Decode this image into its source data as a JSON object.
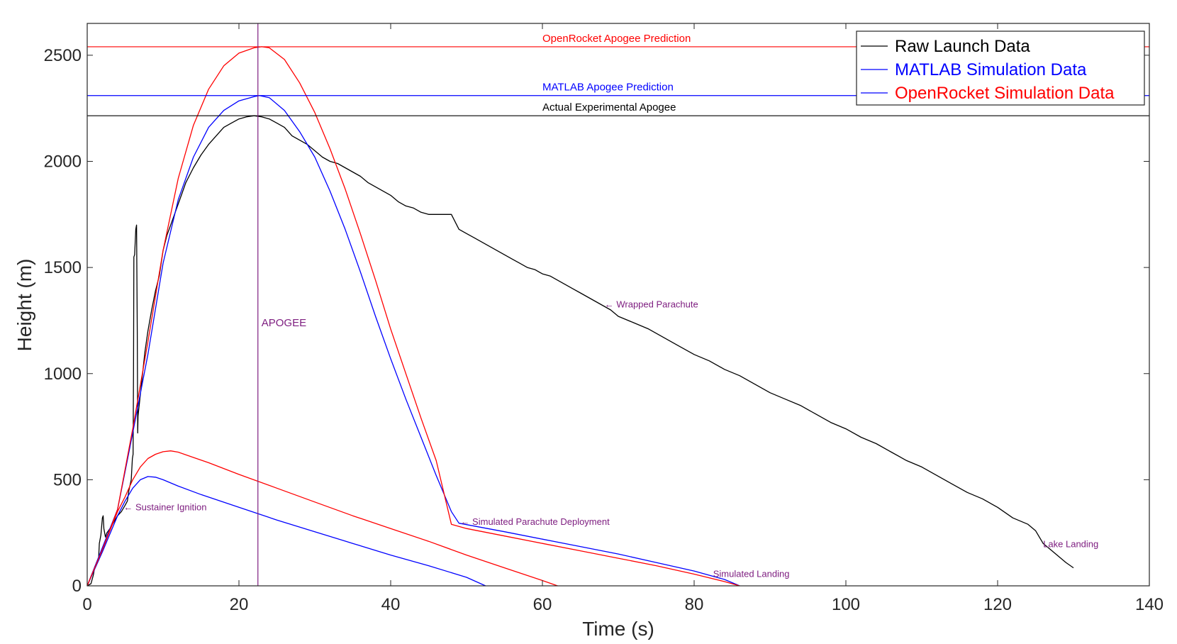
{
  "colors": {
    "raw": "#000000",
    "matlab": "#0000ff",
    "openrocket": "#ff0000",
    "annotation": "#7e1e80",
    "axis": "#262626"
  },
  "chart_data": {
    "type": "line",
    "xlabel": "Time (s)",
    "ylabel": "Height (m)",
    "xlim": [
      0,
      140
    ],
    "ylim": [
      0,
      2650
    ],
    "xticks": [
      0,
      20,
      40,
      60,
      80,
      100,
      120,
      140
    ],
    "yticks": [
      0,
      500,
      1000,
      1500,
      2000,
      2500
    ],
    "xtick_labels": [
      "0",
      "20",
      "40",
      "60",
      "80",
      "100",
      "120",
      "140"
    ],
    "ytick_labels": [
      "0",
      "500",
      "1000",
      "1500",
      "2000",
      "2500"
    ],
    "grid": false,
    "legend_position": "top-right",
    "legend": [
      {
        "label": "Raw Launch Data",
        "color": "#000000",
        "text_color": "#000000",
        "line_color": "#000000"
      },
      {
        "label": "MATLAB Simulation Data",
        "color": "#0000ff",
        "text_color": "#0000ff",
        "line_color": "#0000ff"
      },
      {
        "label": "OpenRocket Simulation Data",
        "color": "#ff0000",
        "text_color": "#ff0000",
        "line_color": "#0000ff"
      }
    ],
    "series": [
      {
        "color": "#000000",
        "points": [
          [
            0,
            0
          ],
          [
            0.5,
            10
          ],
          [
            0.8,
            50
          ],
          [
            1.0,
            90
          ],
          [
            1.3,
            110
          ],
          [
            1.5,
            130
          ],
          [
            1.6,
            200
          ],
          [
            1.8,
            240
          ],
          [
            2.0,
            320
          ],
          [
            2.1,
            330
          ],
          [
            2.2,
            270
          ],
          [
            2.4,
            230
          ],
          [
            2.6,
            250
          ],
          [
            3.0,
            270
          ],
          [
            3.5,
            300
          ],
          [
            4.0,
            330
          ],
          [
            4.5,
            350
          ],
          [
            5.0,
            380
          ],
          [
            5.3,
            400
          ],
          [
            5.5,
            450
          ],
          [
            5.8,
            500
          ],
          [
            5.95,
            600
          ],
          [
            6.05,
            620
          ],
          [
            6.1,
            1000
          ],
          [
            6.15,
            1550
          ],
          [
            6.25,
            1560
          ],
          [
            6.4,
            1680
          ],
          [
            6.5,
            1700
          ],
          [
            6.6,
            1200
          ],
          [
            6.65,
            720
          ],
          [
            6.7,
            800
          ],
          [
            7.0,
            900
          ],
          [
            7.3,
            1000
          ],
          [
            7.6,
            1100
          ],
          [
            8.0,
            1200
          ],
          [
            8.5,
            1300
          ],
          [
            9.0,
            1390
          ],
          [
            9.5,
            1460
          ],
          [
            10.0,
            1580
          ],
          [
            10.5,
            1650
          ],
          [
            11.0,
            1700
          ],
          [
            11.5,
            1750
          ],
          [
            12.0,
            1800
          ],
          [
            12.5,
            1850
          ],
          [
            13.0,
            1900
          ],
          [
            14.0,
            1970
          ],
          [
            15.0,
            2030
          ],
          [
            16.0,
            2080
          ],
          [
            17.0,
            2120
          ],
          [
            18.0,
            2160
          ],
          [
            19.0,
            2180
          ],
          [
            20.0,
            2200
          ],
          [
            21.0,
            2210
          ],
          [
            22.0,
            2215
          ],
          [
            23.0,
            2210
          ],
          [
            24.0,
            2200
          ],
          [
            25.0,
            2180
          ],
          [
            26.0,
            2160
          ],
          [
            27.0,
            2120
          ],
          [
            28.0,
            2100
          ],
          [
            29.0,
            2080
          ],
          [
            30.0,
            2050
          ],
          [
            31.0,
            2020
          ],
          [
            32.0,
            2000
          ],
          [
            33.0,
            1990
          ],
          [
            34.0,
            1970
          ],
          [
            35.0,
            1950
          ],
          [
            36.0,
            1930
          ],
          [
            37.0,
            1900
          ],
          [
            38.0,
            1880
          ],
          [
            39.0,
            1860
          ],
          [
            40.0,
            1840
          ],
          [
            41.0,
            1810
          ],
          [
            42.0,
            1790
          ],
          [
            43.0,
            1780
          ],
          [
            44.0,
            1760
          ],
          [
            45.0,
            1750
          ],
          [
            46.0,
            1750
          ],
          [
            47.0,
            1750
          ],
          [
            48.0,
            1750
          ],
          [
            49.0,
            1680
          ],
          [
            50.0,
            1660
          ],
          [
            51.0,
            1640
          ],
          [
            52.0,
            1620
          ],
          [
            53.0,
            1600
          ],
          [
            54.0,
            1580
          ],
          [
            55.0,
            1560
          ],
          [
            56.0,
            1540
          ],
          [
            57.0,
            1520
          ],
          [
            58.0,
            1500
          ],
          [
            59.0,
            1490
          ],
          [
            60.0,
            1470
          ],
          [
            61.0,
            1460
          ],
          [
            62.0,
            1440
          ],
          [
            63.0,
            1420
          ],
          [
            64.0,
            1400
          ],
          [
            65.0,
            1380
          ],
          [
            66.0,
            1360
          ],
          [
            67.0,
            1340
          ],
          [
            68.0,
            1320
          ],
          [
            69.0,
            1300
          ],
          [
            70.0,
            1270
          ],
          [
            72.0,
            1240
          ],
          [
            74.0,
            1210
          ],
          [
            76.0,
            1170
          ],
          [
            78.0,
            1130
          ],
          [
            80.0,
            1090
          ],
          [
            82.0,
            1060
          ],
          [
            84.0,
            1020
          ],
          [
            86.0,
            990
          ],
          [
            88.0,
            950
          ],
          [
            90.0,
            910
          ],
          [
            92.0,
            880
          ],
          [
            94.0,
            850
          ],
          [
            96.0,
            810
          ],
          [
            98.0,
            770
          ],
          [
            100.0,
            740
          ],
          [
            102.0,
            700
          ],
          [
            104.0,
            670
          ],
          [
            106.0,
            630
          ],
          [
            108.0,
            590
          ],
          [
            110.0,
            560
          ],
          [
            112.0,
            520
          ],
          [
            114.0,
            480
          ],
          [
            116.0,
            440
          ],
          [
            118.0,
            410
          ],
          [
            120.0,
            370
          ],
          [
            122.0,
            320
          ],
          [
            124.0,
            290
          ],
          [
            125.0,
            260
          ],
          [
            126.0,
            200
          ],
          [
            127.0,
            170
          ],
          [
            128.0,
            140
          ],
          [
            129.0,
            110
          ],
          [
            130.0,
            85
          ]
        ]
      },
      {
        "color": "#0000ff",
        "points": [
          [
            0,
            0
          ],
          [
            2,
            180
          ],
          [
            4,
            360
          ],
          [
            6,
            720
          ],
          [
            8,
            1090
          ],
          [
            10,
            1520
          ],
          [
            12,
            1820
          ],
          [
            14,
            2020
          ],
          [
            16,
            2160
          ],
          [
            18,
            2240
          ],
          [
            20,
            2285
          ],
          [
            22,
            2305
          ],
          [
            22.7,
            2310
          ],
          [
            24,
            2300
          ],
          [
            26,
            2240
          ],
          [
            28,
            2140
          ],
          [
            30,
            2020
          ],
          [
            32,
            1860
          ],
          [
            34,
            1680
          ],
          [
            36,
            1480
          ],
          [
            38,
            1270
          ],
          [
            40,
            1070
          ],
          [
            42,
            880
          ],
          [
            44,
            700
          ],
          [
            46,
            520
          ],
          [
            48,
            350
          ],
          [
            49,
            295
          ],
          [
            55,
            255
          ],
          [
            60,
            220
          ],
          [
            65,
            185
          ],
          [
            70,
            150
          ],
          [
            75,
            110
          ],
          [
            80,
            70
          ],
          [
            84,
            30
          ],
          [
            86,
            0
          ]
        ]
      },
      {
        "color": "#ff0000",
        "points": [
          [
            0,
            0
          ],
          [
            2,
            170
          ],
          [
            4,
            360
          ],
          [
            6,
            740
          ],
          [
            8,
            1150
          ],
          [
            10,
            1580
          ],
          [
            12,
            1920
          ],
          [
            14,
            2170
          ],
          [
            16,
            2340
          ],
          [
            18,
            2450
          ],
          [
            20,
            2510
          ],
          [
            22,
            2535
          ],
          [
            23,
            2540
          ],
          [
            24,
            2535
          ],
          [
            26,
            2480
          ],
          [
            28,
            2370
          ],
          [
            30,
            2230
          ],
          [
            32,
            2060
          ],
          [
            34,
            1870
          ],
          [
            36,
            1660
          ],
          [
            38,
            1440
          ],
          [
            40,
            1210
          ],
          [
            42,
            1000
          ],
          [
            44,
            790
          ],
          [
            46,
            590
          ],
          [
            47,
            440
          ],
          [
            48,
            290
          ],
          [
            50,
            270
          ],
          [
            55,
            235
          ],
          [
            60,
            200
          ],
          [
            65,
            165
          ],
          [
            70,
            130
          ],
          [
            75,
            95
          ],
          [
            80,
            55
          ],
          [
            84,
            20
          ],
          [
            86,
            0
          ]
        ]
      },
      {
        "color": "#0000ff",
        "points": [
          [
            0,
            0
          ],
          [
            2,
            160
          ],
          [
            4,
            330
          ],
          [
            5,
            400
          ],
          [
            6,
            460
          ],
          [
            7,
            500
          ],
          [
            8,
            515
          ],
          [
            9,
            512
          ],
          [
            10,
            500
          ],
          [
            12,
            470
          ],
          [
            15,
            430
          ],
          [
            20,
            370
          ],
          [
            25,
            310
          ],
          [
            30,
            255
          ],
          [
            35,
            200
          ],
          [
            40,
            145
          ],
          [
            45,
            95
          ],
          [
            50,
            40
          ],
          [
            52.5,
            0
          ]
        ]
      },
      {
        "color": "#ff0000",
        "points": [
          [
            0,
            0
          ],
          [
            2,
            170
          ],
          [
            4,
            350
          ],
          [
            5,
            420
          ],
          [
            6,
            500
          ],
          [
            7,
            560
          ],
          [
            8,
            600
          ],
          [
            9,
            620
          ],
          [
            10,
            632
          ],
          [
            11,
            636
          ],
          [
            12,
            630
          ],
          [
            14,
            605
          ],
          [
            16,
            580
          ],
          [
            20,
            525
          ],
          [
            25,
            460
          ],
          [
            30,
            395
          ],
          [
            35,
            330
          ],
          [
            40,
            270
          ],
          [
            45,
            210
          ],
          [
            50,
            145
          ],
          [
            55,
            85
          ],
          [
            60,
            25
          ],
          [
            62,
            0
          ]
        ]
      }
    ],
    "reference_lines": [
      {
        "type": "horizontal",
        "value": 2540,
        "color": "#ff0000",
        "label": "OpenRocket Apogee Prediction"
      },
      {
        "type": "horizontal",
        "value": 2310,
        "color": "#0000ff",
        "label": "MATLAB Apogee Prediction"
      },
      {
        "type": "horizontal",
        "value": 2215,
        "color": "#000000",
        "label": "Actual Experimental Apogee"
      },
      {
        "type": "vertical",
        "value": 22.5,
        "color": "#7e1e80",
        "label": "APOGEE"
      }
    ],
    "annotations": [
      {
        "text": "← Sustainer Ignition",
        "x": 4.8,
        "y": 370,
        "arrow": true
      },
      {
        "text": "← Simulated Parachute Deployment",
        "x": 49.2,
        "y": 300,
        "arrow": true
      },
      {
        "text": "← Wrapped Parachute",
        "x": 68.2,
        "y": 1325,
        "arrow": true
      },
      {
        "text": "Simulated Landing",
        "x": 82.5,
        "y": 55,
        "arrow": false
      },
      {
        "text": "Lake Landing",
        "x": 126.0,
        "y": 195,
        "arrow": false
      }
    ]
  }
}
